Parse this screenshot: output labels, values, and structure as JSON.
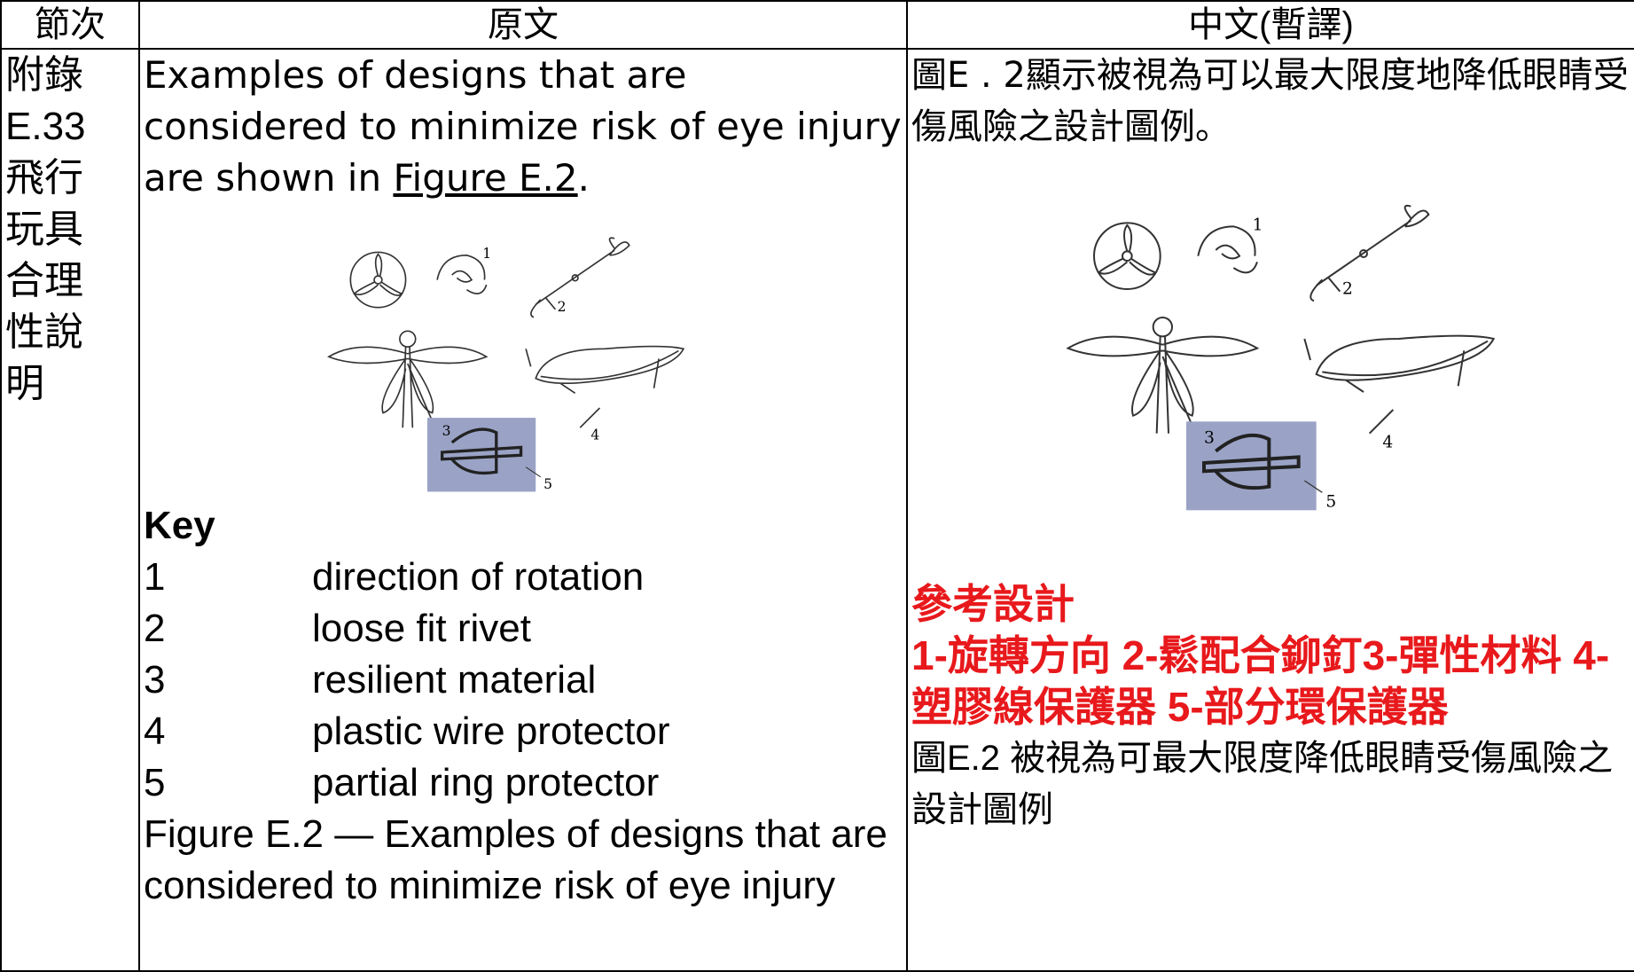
{
  "header": {
    "section": "節次",
    "original": "原文",
    "translation": "中文(暫譯)"
  },
  "section": "附錄E.33飛行玩具合理性說明",
  "original": {
    "intro": [
      "Examples of designs that are considered to minimize risk of eye injury are shown in ",
      "Figure E.2",
      "."
    ],
    "key_title": "Key",
    "key": [
      [
        "1",
        "direction of rotation"
      ],
      [
        "2",
        "loose fit rivet"
      ],
      [
        "3",
        "resilient material"
      ],
      [
        "4",
        "plastic wire protector"
      ],
      [
        "5",
        "partial ring protector"
      ]
    ],
    "caption": "Figure E.2 — Examples of designs that are considered to minimize risk of eye injury"
  },
  "figure": {
    "labels": [
      "1",
      "2",
      "3",
      "4",
      "5"
    ]
  },
  "translation": {
    "intro": "圖E . 2顯示被視為可以最大限度地降低眼睛受傷風險之設計圖例。",
    "note_title": "參考設計",
    "note": "1-旋轉方向 2-鬆配合鉚釘3-彈性材料 4-塑膠線保護器 5-部分環保護器",
    "caption": "圖E.2 被視為可最大限度降低眼睛受傷風險之設計圖例"
  }
}
